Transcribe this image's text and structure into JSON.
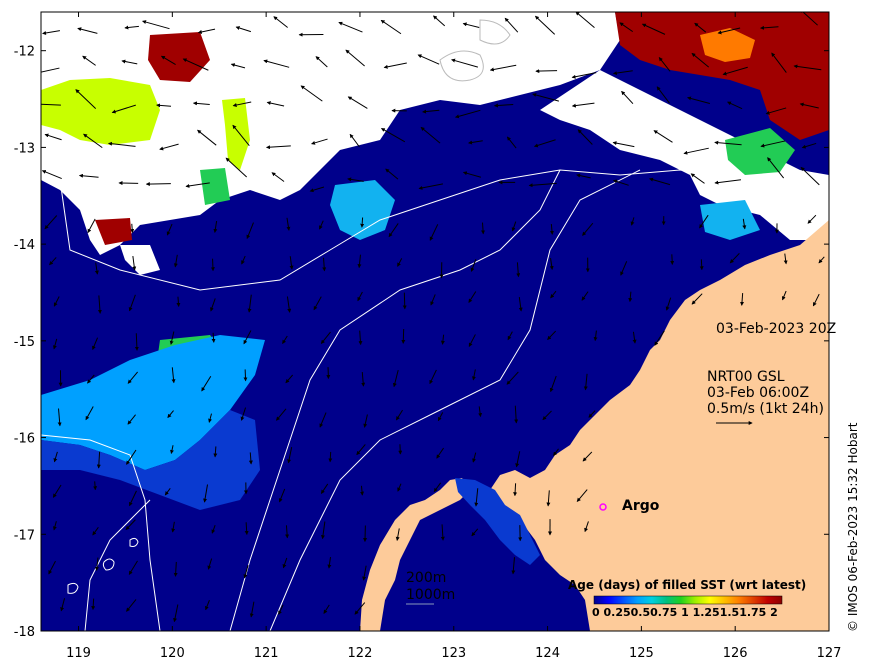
{
  "map": {
    "x_ticks": [
      "119",
      "120",
      "121",
      "122",
      "123",
      "124",
      "125",
      "126",
      "127"
    ],
    "y_ticks": [
      "-12",
      "-13",
      "-14",
      "-15",
      "-16",
      "-17",
      "-18"
    ],
    "x_range": [
      118.6,
      127.0
    ],
    "y_range": [
      -18.0,
      -11.6
    ],
    "colors": {
      "ocean_deep": "#00008b",
      "ocean_mid": "#0a1a9a",
      "land": "#fdcb9a",
      "cloud": "#ffffff",
      "age_light_blue": "#00a0ff",
      "age_cyan": "#12b2f0",
      "age_green": "#22cc55",
      "age_yellow_green": "#c8ff00",
      "age_dark_red": "#a00000",
      "age_orange": "#ff7a00",
      "contour": "#ffffff"
    }
  },
  "labels": {
    "date": "03-Feb-2023 20Z",
    "current_title": "NRT00 GSL",
    "current_time": "03-Feb 06:00Z",
    "current_scale": "0.5m/s (1kt 24h)",
    "argo": "Argo",
    "contour_200": "200m",
    "contour_1000": "1000m",
    "colorbar_title": "Age (days) of filled SST (wrt latest)",
    "colorbar_ticks": "0  0.250.50.75  1  1.251.51.75  2",
    "credit": "© IMOS 06-Feb-2023 15:32 Hobart"
  },
  "colorbar": {
    "stops": [
      "#00008b",
      "#0000ff",
      "#0050ff",
      "#00a0ff",
      "#00d0e0",
      "#00c080",
      "#20d020",
      "#a0f000",
      "#ffff00",
      "#ffc000",
      "#ff8000",
      "#e04000",
      "#c00000",
      "#8b0000"
    ]
  }
}
